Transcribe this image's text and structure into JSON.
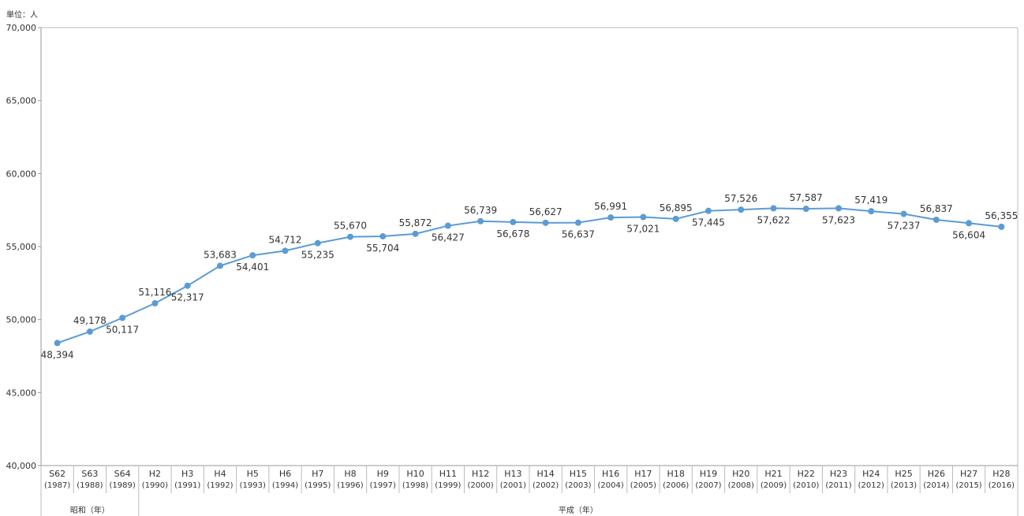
{
  "chart_data": {
    "type": "line",
    "unit_label": "単位：人",
    "ylim": [
      40000,
      70000
    ],
    "yticks": [
      "40,000",
      "45,000",
      "50,000",
      "55,000",
      "60,000",
      "65,000",
      "70,000"
    ],
    "ytick_values": [
      40000,
      45000,
      50000,
      55000,
      60000,
      65000,
      70000
    ],
    "categories": [
      {
        "era": "S62",
        "year": "(1987)"
      },
      {
        "era": "S63",
        "year": "(1988)"
      },
      {
        "era": "S64",
        "year": "(1989)"
      },
      {
        "era": "H2",
        "year": "(1990)"
      },
      {
        "era": "H3",
        "year": "(1991)"
      },
      {
        "era": "H4",
        "year": "(1992)"
      },
      {
        "era": "H5",
        "year": "(1993)"
      },
      {
        "era": "H6",
        "year": "(1994)"
      },
      {
        "era": "H7",
        "year": "(1995)"
      },
      {
        "era": "H8",
        "year": "(1996)"
      },
      {
        "era": "H9",
        "year": "(1997)"
      },
      {
        "era": "H10",
        "year": "(1998)"
      },
      {
        "era": "H11",
        "year": "(1999)"
      },
      {
        "era": "H12",
        "year": "(2000)"
      },
      {
        "era": "H13",
        "year": "(2001)"
      },
      {
        "era": "H14",
        "year": "(2002)"
      },
      {
        "era": "H15",
        "year": "(2003)"
      },
      {
        "era": "H16",
        "year": "(2004)"
      },
      {
        "era": "H17",
        "year": "(2005)"
      },
      {
        "era": "H18",
        "year": "(2006)"
      },
      {
        "era": "H19",
        "year": "(2007)"
      },
      {
        "era": "H20",
        "year": "(2008)"
      },
      {
        "era": "H21",
        "year": "(2009)"
      },
      {
        "era": "H22",
        "year": "(2010)"
      },
      {
        "era": "H23",
        "year": "(2011)"
      },
      {
        "era": "H24",
        "year": "(2012)"
      },
      {
        "era": "H25",
        "year": "(2013)"
      },
      {
        "era": "H26",
        "year": "(2014)"
      },
      {
        "era": "H27",
        "year": "(2015)"
      },
      {
        "era": "H28",
        "year": "(2016)"
      }
    ],
    "era_groups": [
      {
        "label": "昭和（年）",
        "count": 3
      },
      {
        "label": "平成（年）",
        "count": 27
      }
    ],
    "values": [
      48394,
      49178,
      50117,
      51116,
      52317,
      53683,
      54401,
      54712,
      55235,
      55670,
      55704,
      55872,
      56427,
      56739,
      56678,
      56627,
      56637,
      56991,
      57021,
      56895,
      57445,
      57526,
      57622,
      57587,
      57623,
      57419,
      57237,
      56837,
      56604,
      56355
    ],
    "value_labels": [
      "48,394",
      "49,178",
      "50,117",
      "51,116",
      "52,317",
      "53,683",
      "54,401",
      "54,712",
      "55,235",
      "55,670",
      "55,704",
      "55,872",
      "56,427",
      "56,739",
      "56,678",
      "56,627",
      "56,637",
      "56,991",
      "57,021",
      "56,895",
      "57,445",
      "57,526",
      "57,622",
      "57,587",
      "57,623",
      "57,419",
      "57,237",
      "56,837",
      "56,604",
      "56,355"
    ],
    "label_side": [
      "below",
      "above",
      "below",
      "above",
      "below",
      "above",
      "below",
      "above",
      "below",
      "above",
      "below",
      "above",
      "below",
      "above",
      "below",
      "above",
      "below",
      "above",
      "below",
      "above",
      "below",
      "above",
      "below",
      "above",
      "below",
      "above",
      "below",
      "above",
      "below",
      "above"
    ],
    "line_color": "#5b9bd5",
    "grid": false
  }
}
